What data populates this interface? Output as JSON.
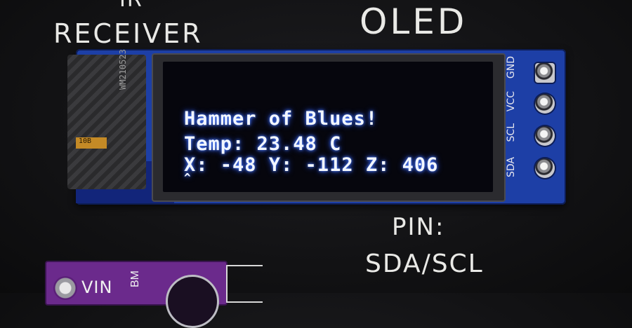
{
  "silkscreen": {
    "ir_top": "IR",
    "ir_receiver": "RECEIVER",
    "oled": "OLED",
    "pin_label": "PIN:",
    "pin_value": "SDA/SCL"
  },
  "oled_module": {
    "flex_code": "WM210523",
    "pad_label": "10B",
    "display_lines": [
      "Hammer of Blues!",
      "Temp: 23.48 C",
      "X: -48 Y: -112 Z: 406",
      "^"
    ],
    "header_pins": [
      "GND",
      "VCC",
      "SCL",
      "SDA"
    ]
  },
  "sensor_board": {
    "vin": "VIN",
    "bm": "BM"
  },
  "colors": {
    "pcb_blue": "#1d3fa6",
    "oled_text": "#f2f6ff",
    "oled_glow": "#2f5bff",
    "sensor_purple": "#6b2a8c"
  }
}
